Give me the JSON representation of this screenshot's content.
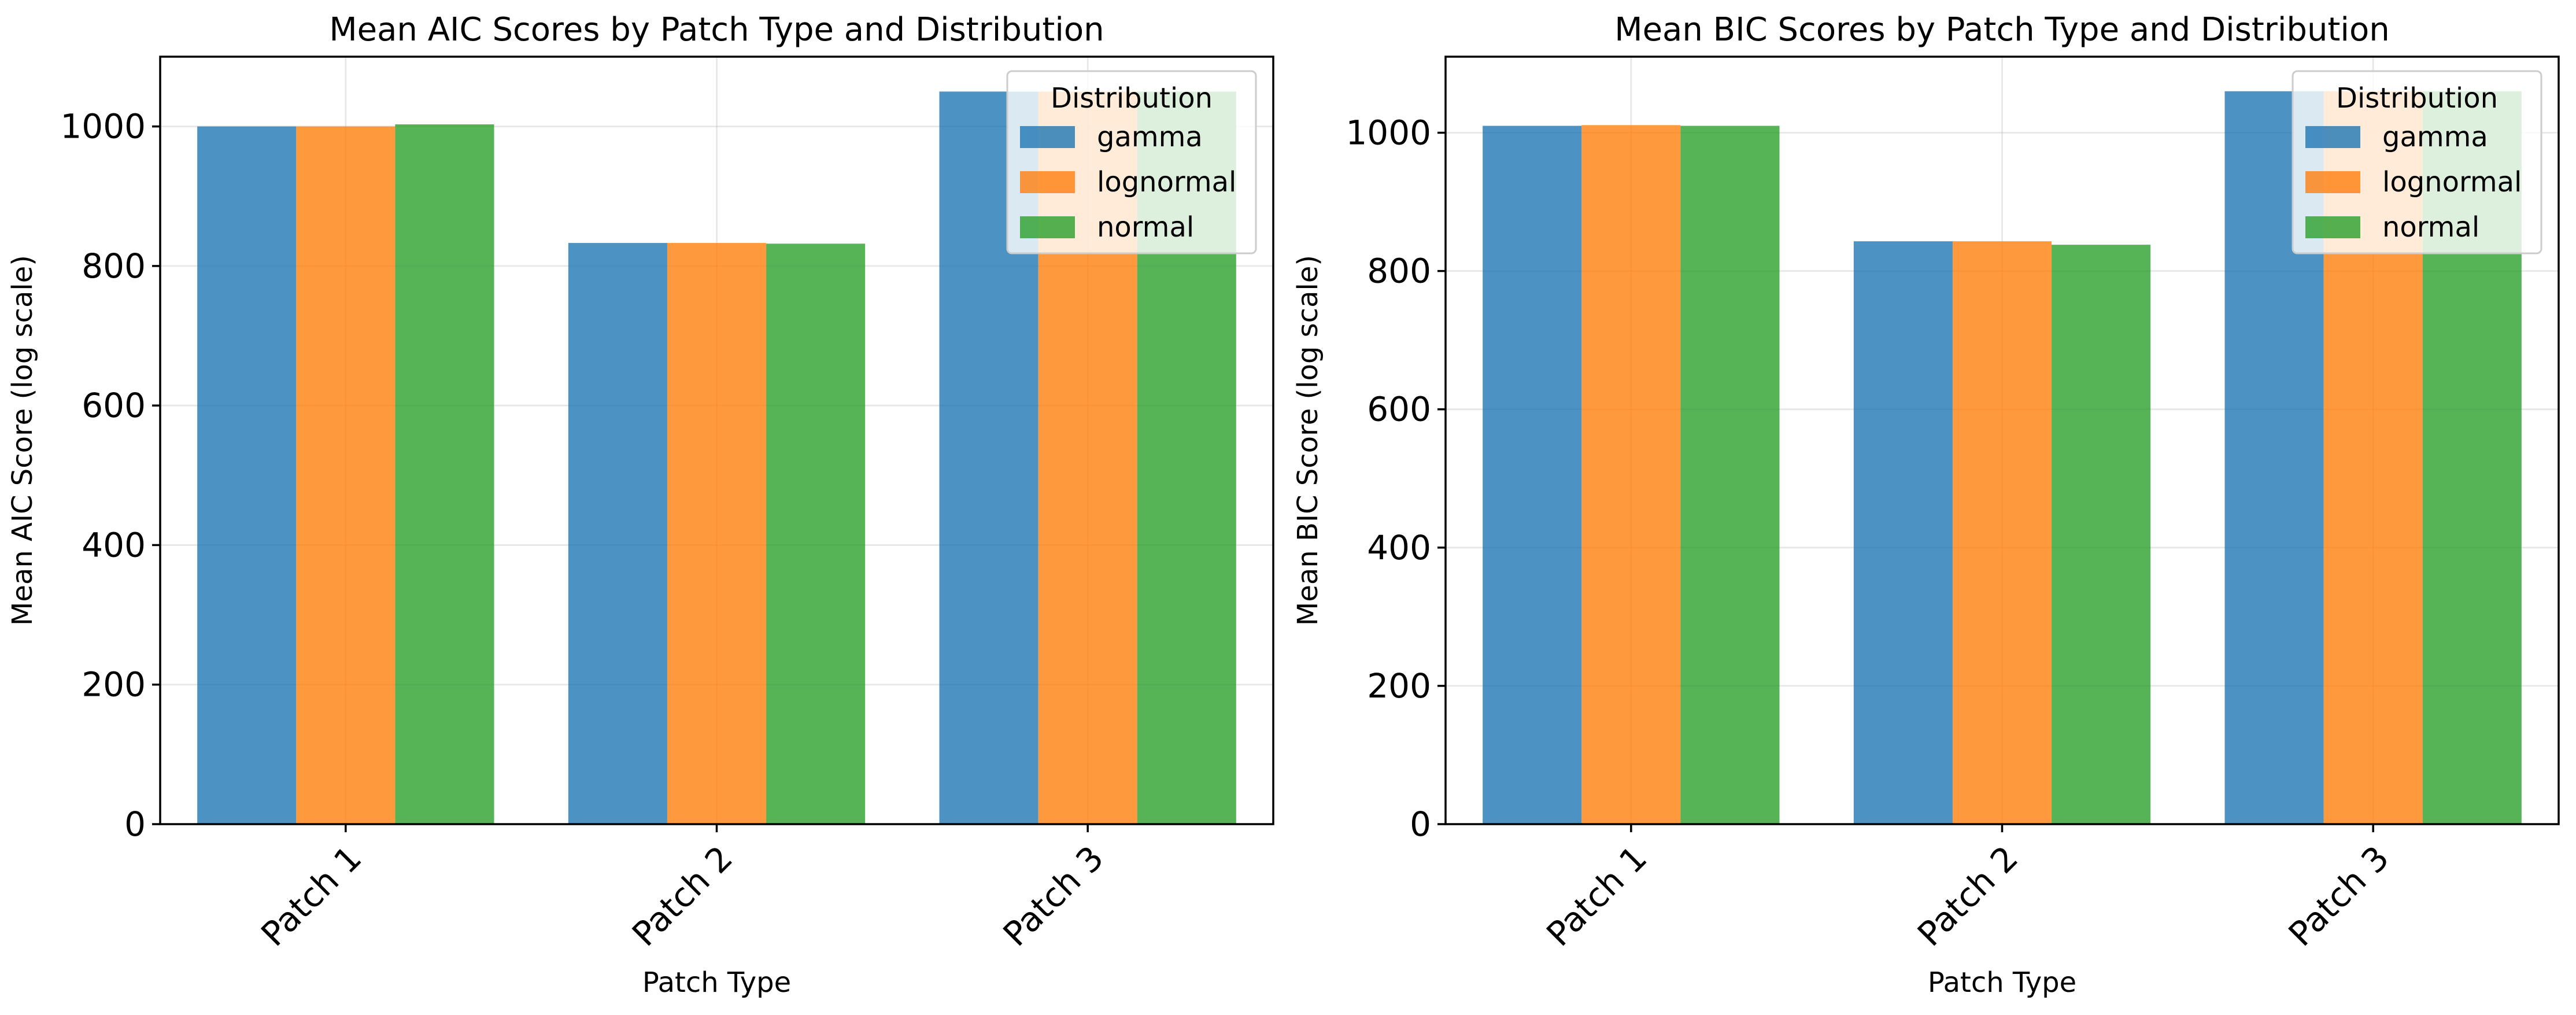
{
  "colors": {
    "gamma": "#1f77b4",
    "lognormal": "#ff7f0e",
    "normal": "#2ca02c"
  },
  "chart_data": [
    {
      "type": "bar",
      "title": "Mean AIC Scores by Patch Type and Distribution",
      "xlabel": "Patch Type",
      "ylabel": "Mean AIC Score (log scale)",
      "categories": [
        "Patch 1",
        "Patch 2",
        "Patch 3"
      ],
      "yticks": [
        0,
        200,
        400,
        600,
        800,
        1000
      ],
      "ytick_labels": [
        "0",
        "200",
        "400",
        "600",
        "800",
        "1000"
      ],
      "ylim": [
        0,
        1100
      ],
      "grid": true,
      "legend": {
        "title": "Distribution",
        "placement": "top-right"
      },
      "series": [
        {
          "name": "gamma",
          "values": [
            1000,
            833,
            1050
          ]
        },
        {
          "name": "lognormal",
          "values": [
            1000,
            833,
            1050
          ]
        },
        {
          "name": "normal",
          "values": [
            1003,
            832,
            1050
          ]
        }
      ]
    },
    {
      "type": "bar",
      "title": "Mean BIC Scores by Patch Type and Distribution",
      "xlabel": "Patch Type",
      "ylabel": "Mean BIC Score (log scale)",
      "categories": [
        "Patch 1",
        "Patch 2",
        "Patch 3"
      ],
      "yticks": [
        0,
        200,
        400,
        600,
        800,
        1000
      ],
      "ytick_labels": [
        "0",
        "200",
        "400",
        "600",
        "800",
        "1000"
      ],
      "ylim": [
        0,
        1110
      ],
      "grid": true,
      "legend": {
        "title": "Distribution",
        "placement": "top-right"
      },
      "series": [
        {
          "name": "gamma",
          "values": [
            1010,
            843,
            1060
          ]
        },
        {
          "name": "lognormal",
          "values": [
            1011,
            843,
            1060
          ]
        },
        {
          "name": "normal",
          "values": [
            1010,
            838,
            1060
          ]
        }
      ]
    }
  ]
}
